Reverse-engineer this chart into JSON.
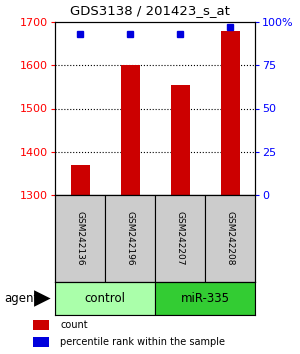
{
  "title": "GDS3138 / 201423_s_at",
  "samples": [
    "GSM242136",
    "GSM242196",
    "GSM242207",
    "GSM242208"
  ],
  "counts": [
    1370,
    1601,
    1555,
    1680
  ],
  "percentiles": [
    93,
    93,
    93,
    97
  ],
  "ylim_left": [
    1300,
    1700
  ],
  "ylim_right": [
    0,
    100
  ],
  "yticks_left": [
    1300,
    1400,
    1500,
    1600,
    1700
  ],
  "yticks_right": [
    0,
    25,
    50,
    75,
    100
  ],
  "ytick_labels_right": [
    "0",
    "25",
    "50",
    "75",
    "100%"
  ],
  "bar_color": "#cc0000",
  "dot_color": "#0000dd",
  "bar_width": 0.38,
  "agent_labels": [
    "control",
    "miR-335"
  ],
  "agent_colors_light": "#aaffaa",
  "agent_colors_dark": "#33cc33",
  "sample_box_color": "#cccccc",
  "background_color": "#ffffff",
  "title_fontsize": 9.5,
  "tick_fontsize": 8,
  "sample_fontsize": 6.5,
  "agent_fontsize": 8.5,
  "legend_fontsize": 7
}
